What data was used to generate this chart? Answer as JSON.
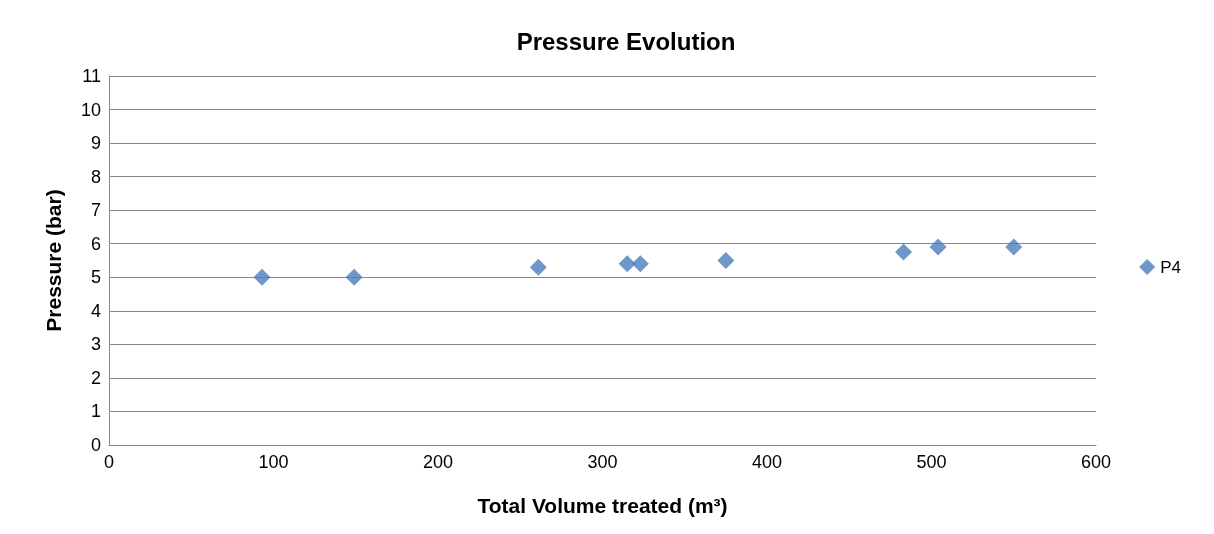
{
  "chart_data": {
    "type": "scatter",
    "title": "Pressure Evolution",
    "xlabel": "Total Volume treated (m³)",
    "ylabel": "Pressure (bar)",
    "x": [
      93,
      149,
      261,
      315,
      323,
      375,
      483,
      504,
      550
    ],
    "series": [
      {
        "name": "P4",
        "color": "#4a7ebb",
        "values": [
          5,
          5,
          5.3,
          5.4,
          5.4,
          5.5,
          5.75,
          5.9,
          5.9
        ]
      }
    ],
    "xlim": [
      0,
      600
    ],
    "xticks": [
      0,
      100,
      200,
      300,
      400,
      500,
      600
    ],
    "ylim": [
      0,
      11
    ],
    "yticks": [
      0,
      1,
      2,
      3,
      4,
      5,
      6,
      7,
      8,
      9,
      10,
      11
    ],
    "grid": "y",
    "legend": "right",
    "marker": "diamond"
  }
}
